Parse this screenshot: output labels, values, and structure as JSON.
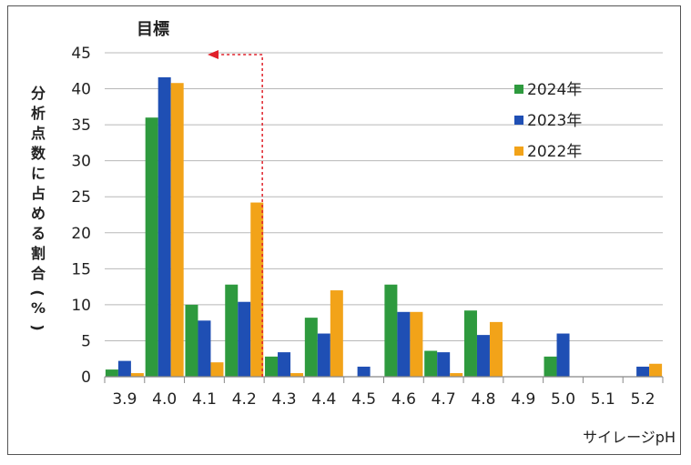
{
  "chart_data": {
    "type": "bar",
    "target_label": "目標",
    "xlabel": "サイレージpH",
    "ylabel": "分析点数に占める割合(%)",
    "ylim": [
      0,
      45
    ],
    "yticks": [
      0,
      5,
      10,
      15,
      20,
      25,
      30,
      35,
      40,
      45
    ],
    "grid": true,
    "legend_position": "top-right",
    "categories": [
      "3.9",
      "4.0",
      "4.1",
      "4.2",
      "4.3",
      "4.4",
      "4.5",
      "4.6",
      "4.7",
      "4.8",
      "4.9",
      "5.0",
      "5.1",
      "5.2"
    ],
    "target_ph": 4.2,
    "series": [
      {
        "name": "2024年",
        "color": "#2e9a3e",
        "values": [
          1.0,
          36.0,
          10.0,
          12.8,
          2.8,
          8.2,
          0,
          12.8,
          3.6,
          9.2,
          0,
          2.8,
          0,
          0
        ]
      },
      {
        "name": "2023年",
        "color": "#1f4fb4",
        "values": [
          2.2,
          41.6,
          7.8,
          10.4,
          3.4,
          6.0,
          1.4,
          9.0,
          3.4,
          5.8,
          0,
          6.0,
          0,
          1.4
        ]
      },
      {
        "name": "2022年",
        "color": "#f2a319",
        "values": [
          0.5,
          40.8,
          2.0,
          24.2,
          0.5,
          12.0,
          0,
          9.0,
          0.5,
          7.6,
          0,
          0,
          0,
          1.8
        ]
      }
    ]
  }
}
